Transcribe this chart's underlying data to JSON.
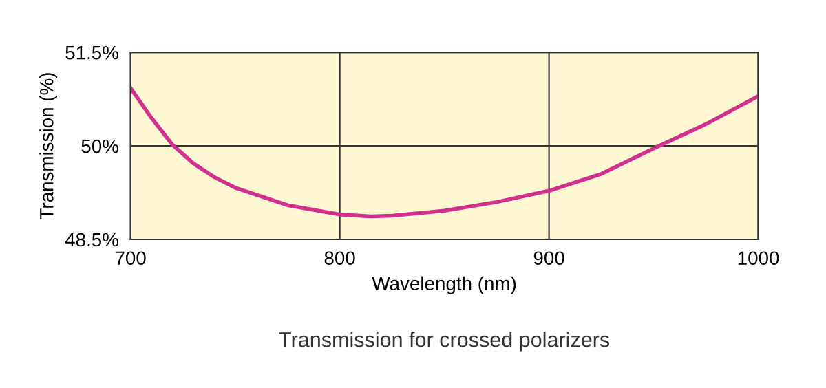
{
  "chart_data": {
    "type": "line",
    "xlabel": "Wavelength (nm)",
    "ylabel": "Transmission (%)",
    "annotations": [
      "Transmission for crossed polarizers"
    ],
    "x": [
      700,
      710,
      720,
      730,
      740,
      750,
      775,
      800,
      815,
      825,
      850,
      875,
      900,
      925,
      950,
      975,
      1000
    ],
    "series": [
      {
        "color": "#d2308e",
        "values": [
          50.93,
          50.45,
          50.02,
          49.72,
          49.5,
          49.33,
          49.05,
          48.9,
          48.87,
          48.88,
          48.96,
          49.1,
          49.28,
          49.55,
          49.96,
          50.35,
          50.8
        ]
      }
    ],
    "xlim": [
      700,
      1000
    ],
    "ylim": [
      48.5,
      51.5
    ],
    "xticks": [
      700,
      800,
      900,
      1000
    ],
    "yticks": [
      {
        "value": 48.5,
        "label": "48.5%"
      },
      {
        "value": 50,
        "label": "50%"
      },
      {
        "value": 51.5,
        "label": "51.5%"
      }
    ],
    "grid": true,
    "marker": "none",
    "line_style": "solid"
  }
}
